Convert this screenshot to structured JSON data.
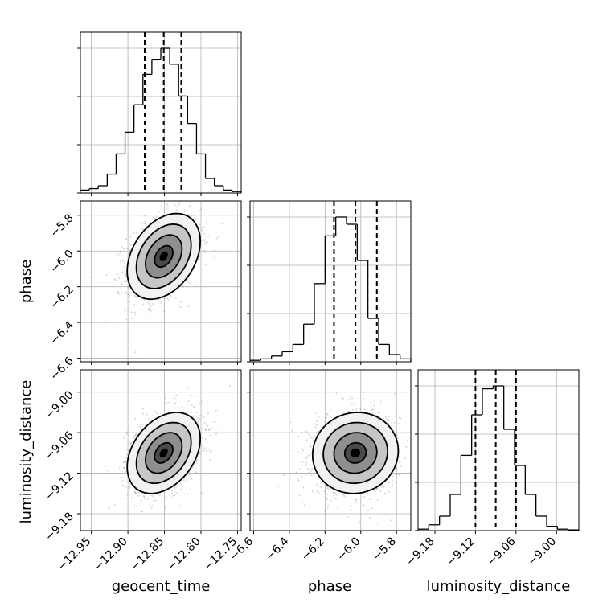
{
  "chart_data": {
    "type": "corner",
    "parameters": [
      {
        "name": "geocent_time",
        "xlabel": "geocent_time",
        "ylabel": "",
        "range": [
          -12.965,
          -12.745
        ],
        "ticks": [
          -12.95,
          -12.9,
          -12.85,
          -12.8,
          -12.75
        ],
        "tick_labels": [
          "−12.95",
          "−12.90",
          "−12.85",
          "−12.80",
          "−12.75"
        ],
        "quantiles": [
          -12.877,
          -12.851,
          -12.827
        ],
        "hist_counts": [
          0.02,
          0.03,
          0.05,
          0.13,
          0.27,
          0.42,
          0.61,
          0.82,
          0.92,
          1.0,
          0.89,
          0.67,
          0.48,
          0.27,
          0.1,
          0.05,
          0.02,
          0.01
        ]
      },
      {
        "name": "phase",
        "xlabel": "phase",
        "ylabel": "phase",
        "range": [
          -6.62,
          -5.72
        ],
        "ticks": [
          -6.6,
          -6.4,
          -6.2,
          -6.0,
          -5.8
        ],
        "tick_labels": [
          "−6.6",
          "−6.4",
          "−6.2",
          "−6.0",
          "−5.8"
        ],
        "quantiles": [
          -6.15,
          -6.03,
          -5.91
        ],
        "hist_counts": [
          0.01,
          0.02,
          0.04,
          0.07,
          0.12,
          0.26,
          0.54,
          0.87,
          1.0,
          0.95,
          0.7,
          0.3,
          0.12,
          0.05,
          0.02
        ]
      },
      {
        "name": "luminosity_distance",
        "xlabel": "luminosity_distance",
        "ylabel": "luminosity_distance",
        "range": [
          -9.205,
          -8.967
        ],
        "ticks": [
          -9.18,
          -9.12,
          -9.06,
          -9.0
        ],
        "tick_labels": [
          "−9.18",
          "−9.12",
          "−9.06",
          "−9.00"
        ],
        "quantiles": [
          -9.12,
          -9.09,
          -9.06
        ],
        "hist_counts": [
          0.01,
          0.04,
          0.1,
          0.25,
          0.52,
          0.8,
          0.98,
          1.0,
          0.7,
          0.45,
          0.25,
          0.1,
          0.03,
          0.01,
          0.005
        ]
      }
    ],
    "pairs": [
      {
        "x": "geocent_time",
        "y": "phase",
        "mean": [
          -12.851,
          -6.03
        ],
        "sigma": [
          0.025,
          0.12
        ],
        "correlation": 0.35
      },
      {
        "x": "geocent_time",
        "y": "luminosity_distance",
        "mean": [
          -12.851,
          -9.09
        ],
        "sigma": [
          0.025,
          0.03
        ],
        "correlation": 0.35
      },
      {
        "x": "phase",
        "y": "luminosity_distance",
        "mean": [
          -6.03,
          -9.09
        ],
        "sigma": [
          0.12,
          0.03
        ],
        "correlation": 0.05
      }
    ],
    "contour_levels_sigma": [
      0.5,
      1.0,
      1.5,
      2.0
    ],
    "grid": true
  }
}
